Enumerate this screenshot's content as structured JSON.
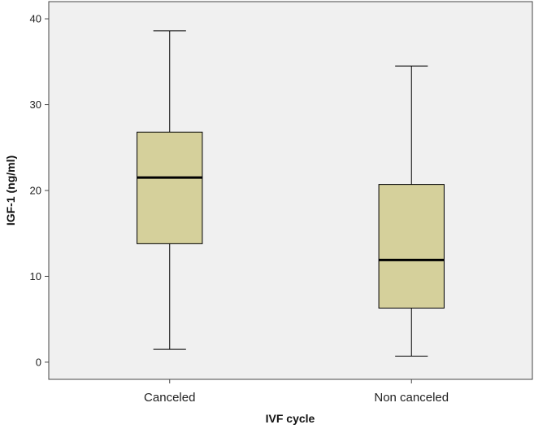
{
  "chart_data": {
    "type": "box",
    "title": "",
    "xlabel": "IVF cycle",
    "ylabel": "IGF-1 (ng/ml)",
    "ylim": [
      -2,
      42
    ],
    "yticks": [
      0,
      10,
      20,
      30,
      40
    ],
    "ytick_labels": [
      "0",
      "10",
      "20",
      "30",
      "40"
    ],
    "grid": false,
    "categories": [
      "Canceled",
      "Non canceled"
    ],
    "boxes": [
      {
        "category": "Canceled",
        "min": 1.5,
        "q1": 13.8,
        "median": 21.5,
        "q3": 26.8,
        "max": 38.6
      },
      {
        "category": "Non canceled",
        "min": 0.7,
        "q1": 6.3,
        "median": 11.9,
        "q3": 20.7,
        "max": 34.5
      }
    ],
    "colors": {
      "box_fill": "#d5d09b",
      "plot_background": "#f0f0f0",
      "line": "#000000"
    }
  }
}
